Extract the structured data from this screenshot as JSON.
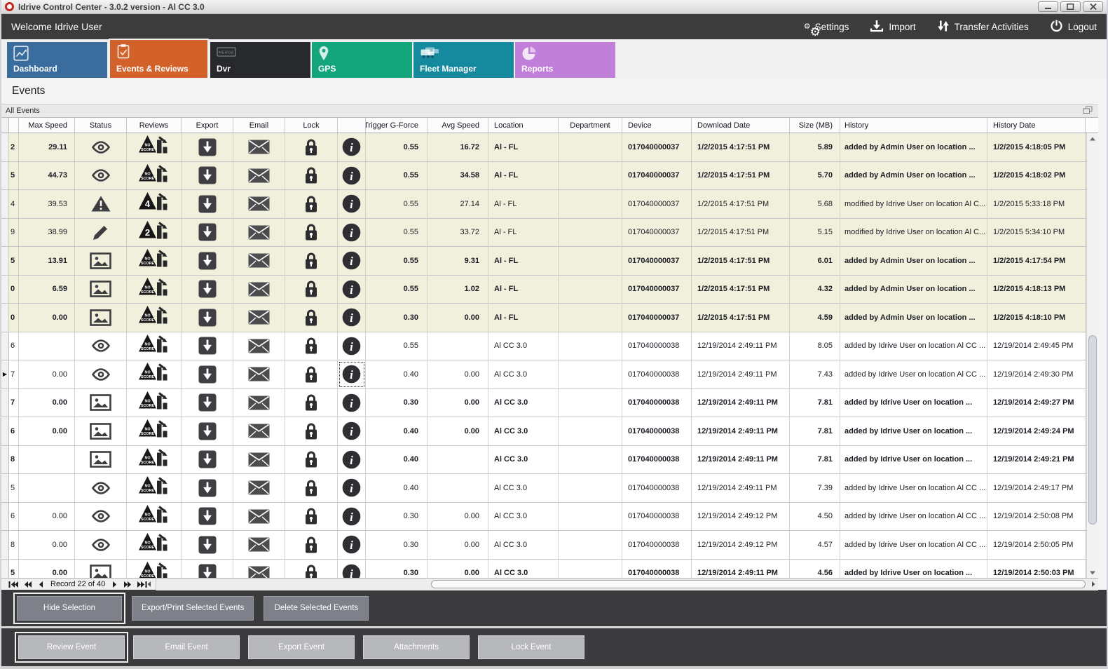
{
  "window": {
    "title": "Idrive Control Center - 3.0.2 version - Al CC 3.0"
  },
  "header": {
    "welcome": "Welcome Idrive User",
    "actions": [
      {
        "label": "Settings",
        "icon": "gears"
      },
      {
        "label": "Import",
        "icon": "import"
      },
      {
        "label": "Transfer Activities",
        "icon": "transfer"
      },
      {
        "label": "Logout",
        "icon": "power"
      }
    ]
  },
  "tabs": [
    {
      "label": "Dashboard",
      "icon": "dashboard",
      "color": "#3a6d9e",
      "active": false
    },
    {
      "label": "Events & Reviews",
      "icon": "events",
      "color": "#d2622a",
      "active": true
    },
    {
      "label": "Dvr",
      "icon": "dvr",
      "color": "#27292d",
      "active": false
    },
    {
      "label": "GPS",
      "icon": "gps",
      "color": "#14a57c",
      "active": false
    },
    {
      "label": "Fleet Manager",
      "icon": "fleet",
      "color": "#15899e",
      "active": false
    },
    {
      "label": "Reports",
      "icon": "reports",
      "color": "#c27fd9",
      "active": false
    }
  ],
  "page_title": "Events",
  "panel": {
    "title": "All Events"
  },
  "table": {
    "columns": [
      {
        "key": "max",
        "label": "Max Speed"
      },
      {
        "key": "status",
        "label": "Status"
      },
      {
        "key": "reviews",
        "label": "Reviews"
      },
      {
        "key": "export",
        "label": "Export"
      },
      {
        "key": "email",
        "label": "Email"
      },
      {
        "key": "lock",
        "label": "Lock"
      },
      {
        "key": "info",
        "label": ""
      },
      {
        "key": "g",
        "label": "Trigger G-Force"
      },
      {
        "key": "avg",
        "label": "Avg Speed"
      },
      {
        "key": "loc",
        "label": "Location"
      },
      {
        "key": "dept",
        "label": "Department"
      },
      {
        "key": "device",
        "label": "Device"
      },
      {
        "key": "dl",
        "label": "Download Date"
      },
      {
        "key": "size",
        "label": "Size (MB)"
      },
      {
        "key": "hist",
        "label": "History"
      },
      {
        "key": "hdate",
        "label": "History Date"
      }
    ],
    "rows": [
      {
        "id": "2",
        "max": "29.11",
        "status": "eye",
        "score": "NO SCORE",
        "g": "0.55",
        "avg": "16.72",
        "loc": "Al - FL",
        "dept": "",
        "device": "017040000037",
        "dl": "1/2/2015 4:17:51 PM",
        "size": "5.89",
        "hist": "added by Admin User on location ...",
        "hdate": "1/2/2015 4:18:05 PM",
        "bold": true,
        "beige": true,
        "current": false
      },
      {
        "id": "5",
        "max": "44.73",
        "status": "eye",
        "score": "NO SCORE",
        "g": "0.55",
        "avg": "34.58",
        "loc": "Al - FL",
        "dept": "",
        "device": "017040000037",
        "dl": "1/2/2015 4:17:51 PM",
        "size": "5.70",
        "hist": "added by Admin User on location ...",
        "hdate": "1/2/2015 4:18:02 PM",
        "bold": true,
        "beige": true,
        "current": false
      },
      {
        "id": "4",
        "max": "39.53",
        "status": "warning",
        "score": "4",
        "g": "0.55",
        "avg": "27.14",
        "loc": "Al - FL",
        "dept": "",
        "device": "017040000037",
        "dl": "1/2/2015 4:17:51 PM",
        "size": "5.68",
        "hist": "modified by Idrive User on location Al C...",
        "hdate": "1/2/2015 5:33:18 PM",
        "bold": false,
        "beige": true,
        "current": false
      },
      {
        "id": "9",
        "max": "38.99",
        "status": "pencil",
        "score": "2",
        "g": "0.55",
        "avg": "33.72",
        "loc": "Al - FL",
        "dept": "",
        "device": "017040000037",
        "dl": "1/2/2015 4:17:51 PM",
        "size": "5.15",
        "hist": "modified by Idrive User on location Al C...",
        "hdate": "1/2/2015 5:34:10 PM",
        "bold": false,
        "beige": true,
        "current": false
      },
      {
        "id": "5",
        "max": "13.91",
        "status": "image",
        "score": "NO SCORE",
        "g": "0.55",
        "avg": "9.31",
        "loc": "Al - FL",
        "dept": "",
        "device": "017040000037",
        "dl": "1/2/2015 4:17:51 PM",
        "size": "6.01",
        "hist": "added by Admin User on location ...",
        "hdate": "1/2/2015 4:17:54 PM",
        "bold": true,
        "beige": true,
        "current": false
      },
      {
        "id": "0",
        "max": "6.59",
        "status": "image",
        "score": "NO SCORE",
        "g": "0.55",
        "avg": "1.02",
        "loc": "Al - FL",
        "dept": "",
        "device": "017040000037",
        "dl": "1/2/2015 4:17:51 PM",
        "size": "4.32",
        "hist": "added by Admin User on location ...",
        "hdate": "1/2/2015 4:18:13 PM",
        "bold": true,
        "beige": true,
        "current": false
      },
      {
        "id": "0",
        "max": "0.00",
        "status": "image",
        "score": "NO SCORE",
        "g": "0.30",
        "avg": "0.00",
        "loc": "Al - FL",
        "dept": "",
        "device": "017040000037",
        "dl": "1/2/2015 4:17:51 PM",
        "size": "4.59",
        "hist": "added by Admin User on location ...",
        "hdate": "1/2/2015 4:18:10 PM",
        "bold": true,
        "beige": true,
        "current": false
      },
      {
        "id": "6",
        "max": "",
        "status": "eye",
        "score": "NO SCORE",
        "g": "0.55",
        "avg": "",
        "loc": "Al CC 3.0",
        "dept": "",
        "device": "017040000038",
        "dl": "12/19/2014 2:49:11 PM",
        "size": "8.05",
        "hist": "added by Idrive User on location Al CC ...",
        "hdate": "12/19/2014 2:49:45 PM",
        "bold": false,
        "beige": false,
        "current": false
      },
      {
        "id": "7",
        "max": "0.00",
        "status": "eye",
        "score": "NO SCORE",
        "g": "0.40",
        "avg": "0.00",
        "loc": "Al CC 3.0",
        "dept": "",
        "device": "017040000038",
        "dl": "12/19/2014 2:49:11 PM",
        "size": "7.43",
        "hist": "added by Idrive User on location Al CC ...",
        "hdate": "12/19/2014 2:49:30 PM",
        "bold": false,
        "beige": false,
        "current": true
      },
      {
        "id": "7",
        "max": "0.00",
        "status": "image",
        "score": "NO SCORE",
        "g": "0.30",
        "avg": "0.00",
        "loc": "Al CC 3.0",
        "dept": "",
        "device": "017040000038",
        "dl": "12/19/2014 2:49:11 PM",
        "size": "7.81",
        "hist": "added by Idrive User on location ...",
        "hdate": "12/19/2014 2:49:27 PM",
        "bold": true,
        "beige": false,
        "current": false
      },
      {
        "id": "6",
        "max": "0.00",
        "status": "image",
        "score": "NO SCORE",
        "g": "0.40",
        "avg": "0.00",
        "loc": "Al CC 3.0",
        "dept": "",
        "device": "017040000038",
        "dl": "12/19/2014 2:49:11 PM",
        "size": "7.81",
        "hist": "added by Idrive User on location ...",
        "hdate": "12/19/2014 2:49:24 PM",
        "bold": true,
        "beige": false,
        "current": false
      },
      {
        "id": "8",
        "max": "",
        "status": "image",
        "score": "NO SCORE",
        "g": "0.40",
        "avg": "",
        "loc": "Al CC 3.0",
        "dept": "",
        "device": "017040000038",
        "dl": "12/19/2014 2:49:11 PM",
        "size": "7.81",
        "hist": "added by Idrive User on location ...",
        "hdate": "12/19/2014 2:49:21 PM",
        "bold": true,
        "beige": false,
        "current": false
      },
      {
        "id": "5",
        "max": "",
        "status": "eye",
        "score": "NO SCORE",
        "g": "0.40",
        "avg": "",
        "loc": "Al CC 3.0",
        "dept": "",
        "device": "017040000038",
        "dl": "12/19/2014 2:49:11 PM",
        "size": "7.39",
        "hist": "added by Idrive User on location Al CC ...",
        "hdate": "12/19/2014 2:49:17 PM",
        "bold": false,
        "beige": false,
        "current": false
      },
      {
        "id": "6",
        "max": "0.00",
        "status": "eye",
        "score": "NO SCORE",
        "g": "0.30",
        "avg": "0.00",
        "loc": "Al CC 3.0",
        "dept": "",
        "device": "017040000038",
        "dl": "12/19/2014 2:49:12 PM",
        "size": "4.50",
        "hist": "added by Idrive User on location Al CC ...",
        "hdate": "12/19/2014 2:50:08 PM",
        "bold": false,
        "beige": false,
        "current": false
      },
      {
        "id": "8",
        "max": "0.00",
        "status": "eye",
        "score": "NO SCORE",
        "g": "0.30",
        "avg": "0.00",
        "loc": "Al CC 3.0",
        "dept": "",
        "device": "017040000038",
        "dl": "12/19/2014 2:49:12 PM",
        "size": "4.57",
        "hist": "added by Idrive User on location Al CC ...",
        "hdate": "12/19/2014 2:50:05 PM",
        "bold": false,
        "beige": false,
        "current": false
      },
      {
        "id": "5",
        "max": "0.00",
        "status": "image",
        "score": "NO SCORE",
        "g": "0.30",
        "avg": "0.00",
        "loc": "Al CC 3.0",
        "dept": "",
        "device": "017040000038",
        "dl": "12/19/2014 2:49:11 PM",
        "size": "4.56",
        "hist": "added by Idrive User on location ...",
        "hdate": "12/19/2014 2:50:03 PM",
        "bold": true,
        "beige": false,
        "current": false
      }
    ]
  },
  "pager": {
    "label": "Record 22 of 40"
  },
  "action_bars": {
    "selection": [
      {
        "label": "Hide Selection",
        "focused": true
      },
      {
        "label": "Export/Print Selected Events",
        "focused": false
      },
      {
        "label": "Delete Selected  Events",
        "focused": false
      }
    ],
    "event": [
      {
        "label": "Review Event",
        "focused": true
      },
      {
        "label": "Email Event",
        "focused": false
      },
      {
        "label": "Export Event",
        "focused": false
      },
      {
        "label": "Attachments",
        "focused": false
      },
      {
        "label": "Lock Event",
        "focused": false
      }
    ]
  },
  "colors": {
    "accent_orange": "#d2622a",
    "bar_dark": "#3c3c3c",
    "row_highlight": "#f1f0dd"
  }
}
